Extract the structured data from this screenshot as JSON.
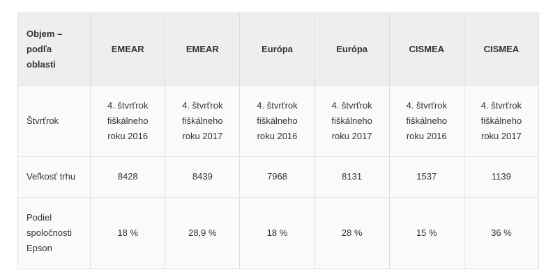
{
  "table": {
    "corner_label": "Objem – podľa oblasti",
    "regions": [
      "EMEAR",
      "EMEAR",
      "Európa",
      "Európa",
      "CISMEA",
      "CISMEA"
    ],
    "rows": [
      {
        "label": "Štvrťrok",
        "cells": [
          "4. štvrťrok fiškálneho roku 2016",
          "4. štvrťrok fiškálneho roku 2017",
          "4. štvrťrok fiškálneho roku 2016",
          "4. štvrťrok fiškálneho roku 2017",
          "4. štvrťrok fiškálneho roku 2016",
          "4. štvrťrok fiškálneho roku 2017"
        ]
      },
      {
        "label": "Veľkosť trhu",
        "cells": [
          "8428",
          "8439",
          "7968",
          "8131",
          "1537",
          "1139"
        ]
      },
      {
        "label": "Podiel spoločnosti Epson",
        "cells": [
          "18 %",
          "28,9 %",
          "18 %",
          "28 %",
          "15 %",
          "36 %"
        ]
      }
    ]
  }
}
